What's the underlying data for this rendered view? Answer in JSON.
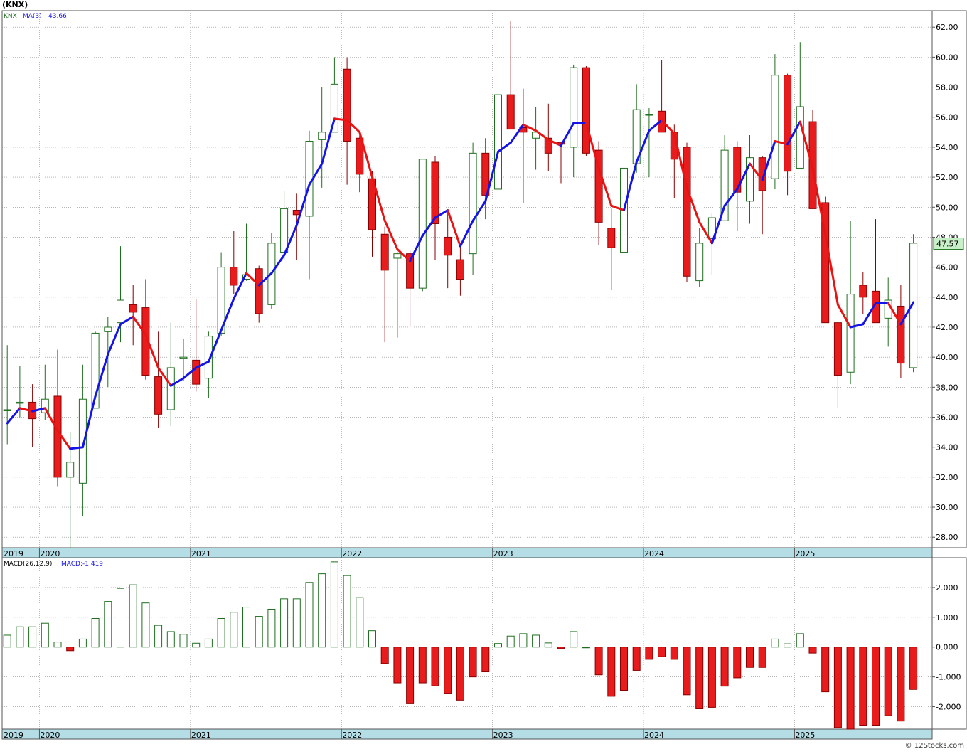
{
  "page_title": "(KNX)",
  "credit": "© 12Stocks.com",
  "colors": {
    "up_body": "#ffffff",
    "up_outline": "#1f6e1f",
    "down_body": "#e81c1c",
    "down_outline": "#8a0000",
    "ma_up": "#1414e6",
    "ma_down": "#e81414",
    "grid": "#8a8a8a",
    "date_band": "#b4dde6",
    "last_price_box": "#c8f0c8"
  },
  "chart_data": [
    {
      "type": "candlestick",
      "legend": {
        "symbol": "KNX",
        "ma_label": "MA(3)",
        "ma_value": "43.66"
      },
      "last_price": "47.57",
      "ylim": [
        27.3,
        63.1
      ],
      "yticks": [
        "28.00",
        "30.00",
        "32.00",
        "34.00",
        "36.00",
        "38.00",
        "40.00",
        "42.00",
        "44.00",
        "46.00",
        "48.00",
        "50.00",
        "52.00",
        "54.00",
        "56.00",
        "58.00",
        "60.00",
        "62.00"
      ],
      "year_labels": [
        {
          "label": "2019",
          "at": 0
        },
        {
          "label": "2020",
          "at": 3
        },
        {
          "label": "2021",
          "at": 15
        },
        {
          "label": "2022",
          "at": 27
        },
        {
          "label": "2023",
          "at": 39
        },
        {
          "label": "2024",
          "at": 51
        },
        {
          "label": "2025",
          "at": 63
        }
      ],
      "ohlc": [
        [
          36.5,
          40.8,
          34.2,
          36.5
        ],
        [
          37.0,
          39.4,
          36.0,
          37.0
        ],
        [
          37.0,
          38.2,
          34.0,
          35.9
        ],
        [
          36.3,
          39.5,
          35.8,
          37.2
        ],
        [
          37.4,
          40.5,
          31.4,
          32.0
        ],
        [
          32.0,
          35.0,
          27.3,
          33.0
        ],
        [
          31.6,
          39.5,
          29.4,
          37.2
        ],
        [
          36.6,
          41.7,
          36.6,
          41.6
        ],
        [
          41.7,
          42.7,
          38.0,
          42.0
        ],
        [
          42.3,
          47.4,
          41.0,
          43.8
        ],
        [
          43.5,
          44.8,
          40.8,
          43.0
        ],
        [
          43.3,
          45.2,
          38.5,
          38.8
        ],
        [
          38.7,
          41.7,
          35.3,
          36.2
        ],
        [
          36.5,
          42.3,
          35.4,
          39.3
        ],
        [
          40.0,
          41.2,
          38.4,
          40.0
        ],
        [
          39.8,
          43.9,
          37.7,
          38.2
        ],
        [
          38.6,
          41.7,
          37.3,
          41.4
        ],
        [
          41.6,
          47.0,
          41.4,
          46.0
        ],
        [
          46.0,
          48.4,
          44.2,
          44.8
        ],
        [
          45.2,
          48.9,
          45.1,
          45.5
        ],
        [
          45.9,
          46.1,
          42.3,
          42.9
        ],
        [
          43.5,
          48.3,
          43.2,
          47.6
        ],
        [
          47.0,
          51.1,
          46.5,
          49.9
        ],
        [
          49.8,
          50.9,
          46.5,
          49.5
        ],
        [
          49.4,
          55.1,
          45.2,
          54.4
        ],
        [
          54.5,
          58.0,
          51.3,
          55.0
        ],
        [
          55.0,
          60.0,
          55.0,
          58.2
        ],
        [
          59.2,
          60.0,
          51.5,
          54.4
        ],
        [
          54.6,
          55.0,
          51.0,
          52.2
        ],
        [
          51.9,
          52.4,
          46.7,
          48.5
        ],
        [
          48.2,
          48.7,
          41.0,
          45.8
        ],
        [
          46.6,
          47.0,
          41.3,
          46.9
        ],
        [
          46.9,
          47.1,
          42.0,
          44.6
        ],
        [
          44.6,
          53.2,
          44.4,
          53.2
        ],
        [
          53.0,
          53.4,
          46.5,
          48.9
        ],
        [
          48.0,
          49.8,
          44.6,
          46.8
        ],
        [
          46.5,
          47.6,
          44.1,
          45.2
        ],
        [
          46.9,
          54.3,
          45.5,
          53.6
        ],
        [
          53.6,
          54.6,
          49.2,
          50.8
        ],
        [
          51.2,
          60.7,
          51.0,
          57.5
        ],
        [
          57.5,
          62.4,
          55.2,
          55.2
        ],
        [
          55.3,
          57.9,
          50.3,
          55.0
        ],
        [
          54.6,
          56.7,
          52.5,
          55.0
        ],
        [
          54.6,
          56.9,
          52.4,
          53.6
        ],
        [
          54.3,
          54.3,
          51.6,
          54.2
        ],
        [
          54.0,
          59.5,
          52.0,
          59.3
        ],
        [
          59.3,
          59.4,
          53.4,
          53.6
        ],
        [
          53.8,
          54.4,
          47.5,
          49.0
        ],
        [
          48.6,
          49.9,
          44.5,
          47.3
        ],
        [
          47.0,
          53.7,
          46.8,
          52.6
        ],
        [
          52.9,
          58.2,
          52.3,
          56.5
        ],
        [
          56.2,
          56.6,
          52.0,
          56.2
        ],
        [
          56.4,
          59.8,
          55.0,
          55.0
        ],
        [
          55.0,
          55.5,
          50.6,
          53.2
        ],
        [
          54.0,
          54.3,
          45.0,
          45.4
        ],
        [
          45.1,
          48.6,
          44.7,
          47.6
        ],
        [
          47.9,
          49.6,
          45.5,
          49.3
        ],
        [
          49.1,
          54.8,
          49.2,
          53.8
        ],
        [
          54.0,
          54.4,
          48.4,
          51.0
        ],
        [
          50.4,
          54.8,
          48.9,
          53.3
        ],
        [
          53.3,
          53.4,
          48.2,
          51.1
        ],
        [
          51.9,
          60.2,
          51.2,
          58.8
        ],
        [
          58.8,
          58.9,
          50.8,
          52.4
        ],
        [
          52.6,
          61.0,
          52.6,
          56.7
        ],
        [
          55.7,
          56.5,
          49.9,
          49.9
        ],
        [
          50.3,
          50.7,
          42.3,
          42.3
        ],
        [
          42.3,
          42.3,
          36.6,
          38.8
        ],
        [
          39.0,
          49.1,
          38.2,
          44.2
        ],
        [
          44.8,
          45.7,
          42.9,
          44.0
        ],
        [
          44.4,
          49.2,
          42.3,
          42.3
        ],
        [
          42.6,
          45.3,
          40.7,
          43.8
        ],
        [
          43.4,
          44.8,
          38.6,
          39.6
        ],
        [
          39.3,
          48.2,
          39.0,
          47.6
        ]
      ],
      "ma3": [
        35.6,
        36.6,
        36.4,
        36.6,
        35.1,
        33.9,
        34.0,
        37.4,
        40.2,
        42.2,
        42.7,
        41.5,
        39.3,
        38.1,
        38.6,
        39.3,
        39.7,
        41.8,
        43.9,
        45.6,
        44.8,
        45.6,
        46.8,
        48.8,
        51.5,
        52.9,
        55.9,
        55.8,
        55.0,
        52.0,
        49.1,
        47.2,
        46.4,
        48.1,
        49.3,
        49.8,
        47.4,
        49.1,
        50.4,
        53.7,
        54.3,
        55.5,
        55.1,
        54.5,
        54.1,
        55.6,
        55.6,
        52.6,
        50.1,
        49.8,
        53.0,
        55.1,
        55.8,
        54.9,
        51.3,
        49.0,
        47.6,
        50.1,
        51.2,
        52.9,
        51.8,
        54.4,
        54.2,
        55.7,
        52.6,
        48.2,
        43.5,
        42.0,
        42.2,
        43.6,
        43.6,
        42.2,
        43.66
      ],
      "series": [
        {
          "name": "KNX"
        },
        {
          "name": "MA(3)"
        }
      ]
    },
    {
      "type": "bar",
      "legend": {
        "label": "MACD(26,12,9)",
        "value_label": "MACD:-1.419"
      },
      "ylim": [
        -2.75,
        3.0
      ],
      "yticks": [
        "2.000",
        "1.000",
        "0.000",
        "-1.000",
        "-2.000"
      ],
      "ytick_values": [
        2,
        1,
        0,
        -1,
        -2
      ],
      "values": [
        0.4,
        0.68,
        0.68,
        0.8,
        0.17,
        -0.12,
        0.27,
        0.96,
        1.53,
        1.97,
        2.09,
        1.48,
        0.73,
        0.52,
        0.43,
        0.13,
        0.27,
        0.96,
        1.17,
        1.34,
        1.03,
        1.27,
        1.62,
        1.62,
        2.17,
        2.46,
        2.86,
        2.4,
        1.66,
        0.55,
        -0.55,
        -1.2,
        -1.9,
        -1.2,
        -1.3,
        -1.55,
        -1.78,
        -1.0,
        -0.83,
        0.12,
        0.37,
        0.45,
        0.4,
        0.14,
        -0.05,
        0.52,
        0.0,
        -0.93,
        -1.65,
        -1.45,
        -0.78,
        -0.41,
        -0.32,
        -0.41,
        -1.6,
        -2.07,
        -2.02,
        -1.31,
        -1.03,
        -0.68,
        -0.68,
        0.27,
        0.11,
        0.45,
        -0.2,
        -1.5,
        -2.7,
        -2.75,
        -2.62,
        -2.62,
        -2.3,
        -2.48,
        -1.42
      ]
    }
  ]
}
